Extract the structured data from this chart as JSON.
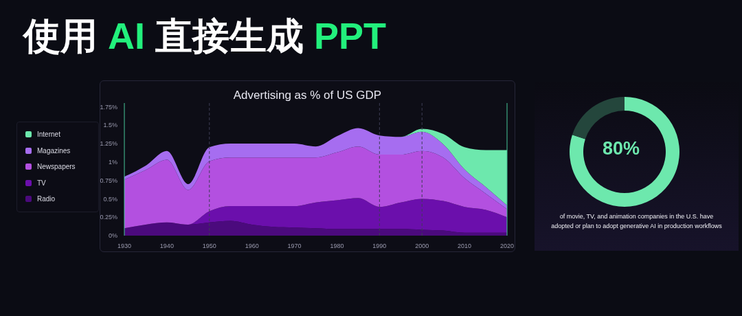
{
  "chart_data": [
    {
      "type": "other",
      "title": "使用 AI 直接生成 PPT"
    },
    {
      "type": "area",
      "title": "Advertising as % of US GDP",
      "stacked": true,
      "x": [
        1930,
        1935,
        1940,
        1945,
        1950,
        1955,
        1960,
        1965,
        1970,
        1975,
        1980,
        1985,
        1990,
        1995,
        2000,
        2005,
        2010,
        2015,
        2020
      ],
      "series": [
        {
          "name": "Radio",
          "color": "#4b0a7d",
          "values": [
            0.1,
            0.15,
            0.18,
            0.15,
            0.18,
            0.2,
            0.15,
            0.12,
            0.11,
            0.1,
            0.09,
            0.09,
            0.09,
            0.09,
            0.08,
            0.07,
            0.04,
            0.04,
            0.04
          ]
        },
        {
          "name": "TV",
          "color": "#6b0fac",
          "values": [
            0,
            0,
            0,
            0,
            0.15,
            0.2,
            0.25,
            0.28,
            0.29,
            0.35,
            0.39,
            0.42,
            0.3,
            0.36,
            0.42,
            0.4,
            0.35,
            0.31,
            0.21
          ]
        },
        {
          "name": "Newspapers",
          "color": "#b350e0",
          "values": [
            0.66,
            0.74,
            0.85,
            0.47,
            0.68,
            0.66,
            0.66,
            0.66,
            0.66,
            0.61,
            0.65,
            0.7,
            0.71,
            0.65,
            0.65,
            0.59,
            0.39,
            0.22,
            0.11
          ]
        },
        {
          "name": "Magazines",
          "color": "#a66df0",
          "values": [
            0.04,
            0.06,
            0.12,
            0.08,
            0.19,
            0.19,
            0.19,
            0.19,
            0.19,
            0.15,
            0.22,
            0.25,
            0.26,
            0.24,
            0.26,
            0.18,
            0.12,
            0.09,
            0.05
          ]
        },
        {
          "name": "Internet",
          "color": "#6de8ad",
          "values": [
            0,
            0,
            0,
            0,
            0,
            0,
            0,
            0,
            0,
            0,
            0,
            0,
            0,
            0,
            0.04,
            0.14,
            0.3,
            0.5,
            0.75
          ]
        }
      ],
      "xlim": [
        1930,
        2020
      ],
      "xticks": [
        1930,
        1940,
        1950,
        1960,
        1970,
        1980,
        1990,
        2000,
        2010,
        2020
      ],
      "ylim": [
        0,
        1.8
      ],
      "yticks": [
        {
          "value": 0,
          "label": "0%"
        },
        {
          "value": 0.25,
          "label": "0.25%"
        },
        {
          "value": 0.5,
          "label": "0.5%"
        },
        {
          "value": 0.75,
          "label": "0.75%"
        },
        {
          "value": 1,
          "label": "1%"
        },
        {
          "value": 1.25,
          "label": "1.25%"
        },
        {
          "value": 1.5,
          "label": "1.5%"
        },
        {
          "value": 1.75,
          "label": "1.75%"
        }
      ],
      "legend": "left",
      "ref_lines": [
        {
          "axis": "x",
          "value": 1950,
          "color": "#3d3d55",
          "line_style": "dashed"
        },
        {
          "axis": "x",
          "value": 1990,
          "color": "#3d3d55",
          "line_style": "dashed"
        },
        {
          "axis": "x",
          "value": 2000,
          "color": "#3d3d55",
          "line_style": "dashed"
        }
      ]
    },
    {
      "type": "donut",
      "categories": [
        null,
        null
      ],
      "values": [
        80,
        20
      ],
      "colors": [
        "#6de8ad",
        "#24463c"
      ],
      "annotations": [
        "80%",
        "of movie, TV, and animation companies in the U.S. have adopted or plan to adopt generative AI in production workflows"
      ]
    }
  ]
}
